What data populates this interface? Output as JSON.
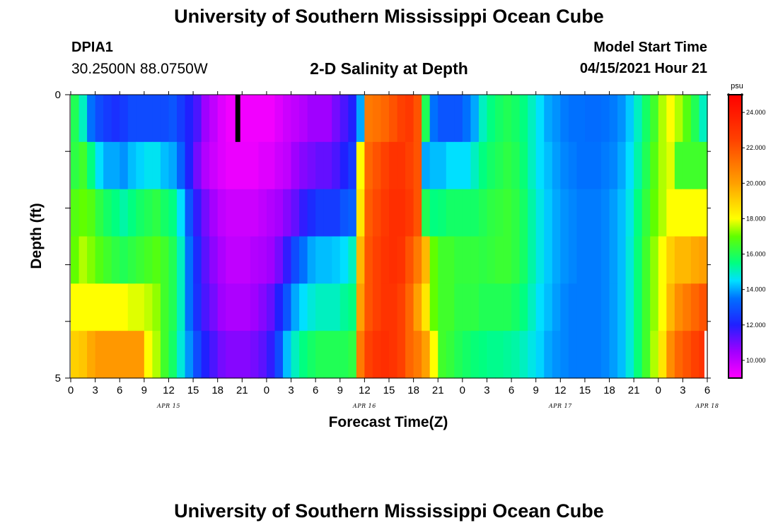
{
  "page": {
    "title": "University of Southern Mississippi Ocean Cube",
    "footer_title": "University of Southern Mississippi Ocean Cube"
  },
  "station": {
    "id": "DPIA1",
    "coords": "30.2500N  88.0750W"
  },
  "model": {
    "start_label": "Model Start Time",
    "start_value": "04/15/2021 Hour 21"
  },
  "chart_data": {
    "type": "heatmap",
    "title": "2-D Salinity at Depth",
    "xlabel": "Forecast Time(Z)",
    "ylabel": "Depth (ft)",
    "x_start": "2021-04-15 00Z",
    "x_step_hours": 1,
    "x_range_hours": [
      0,
      78
    ],
    "x_tick_labels": [
      "0",
      "3",
      "6",
      "9",
      "12",
      "15",
      "18",
      "21",
      "0",
      "3",
      "6",
      "9",
      "12",
      "15",
      "18",
      "21",
      "0",
      "3",
      "6",
      "9",
      "12",
      "15",
      "18",
      "21",
      "0",
      "3",
      "6"
    ],
    "day_labels": [
      {
        "label": "APR 15",
        "hour": 12
      },
      {
        "label": "APR 16",
        "hour": 36
      },
      {
        "label": "APR 17",
        "hour": 60
      },
      {
        "label": "APR 18",
        "hour": 78
      }
    ],
    "ylim": [
      0,
      5
    ],
    "y_tick_labels": [
      "0",
      "5"
    ],
    "depth_rows_ft": [
      0.0,
      1.0,
      2.0,
      3.0,
      4.0,
      5.0
    ],
    "colorbar": {
      "unit": "psu",
      "range": [
        9,
        25
      ],
      "tick_labels": [
        "24.000",
        "22.000",
        "20.000",
        "18.000",
        "16.000",
        "14.000",
        "12.000",
        "10.000"
      ],
      "stops": [
        {
          "v": 9.0,
          "c": "#ff00ff"
        },
        {
          "v": 10.5,
          "c": "#a000ff"
        },
        {
          "v": 12.0,
          "c": "#2020ff"
        },
        {
          "v": 13.5,
          "c": "#0070ff"
        },
        {
          "v": 14.5,
          "c": "#00e0ff"
        },
        {
          "v": 15.5,
          "c": "#00ff80"
        },
        {
          "v": 17.0,
          "c": "#60ff00"
        },
        {
          "v": 18.0,
          "c": "#ffff00"
        },
        {
          "v": 20.0,
          "c": "#ffa000"
        },
        {
          "v": 22.5,
          "c": "#ff4000"
        },
        {
          "v": 25.0,
          "c": "#ff0000"
        }
      ]
    },
    "salinity_psu": [
      [
        16.0,
        15.0,
        13.5,
        12.8,
        12.5,
        12.3,
        12.5,
        12.8,
        12.8,
        12.8,
        12.8,
        12.8,
        13.0,
        12.5,
        12.0,
        11.5,
        10.5,
        10.0,
        9.5,
        9.2,
        9.2,
        9.2,
        9.2,
        9.2,
        9.2,
        9.5,
        9.8,
        10.0,
        10.2,
        10.5,
        10.5,
        10.5,
        11.0,
        11.5,
        12.0,
        14.0,
        21.0,
        21.2,
        21.5,
        22.0,
        22.5,
        22.8,
        22.0,
        16.0,
        13.5,
        13.0,
        13.0,
        13.0,
        13.5,
        14.0,
        15.0,
        15.5,
        15.8,
        16.0,
        15.8,
        15.5,
        15.0,
        14.5,
        14.0,
        13.8,
        13.6,
        13.5,
        13.5,
        13.4,
        13.4,
        13.5,
        13.6,
        13.8,
        14.3,
        15.0,
        15.8,
        16.5,
        17.5,
        18.0,
        17.5,
        16.8,
        16.0,
        15.0,
        14.5
      ],
      [
        16.2,
        16.5,
        15.5,
        14.5,
        14.0,
        14.0,
        13.8,
        14.2,
        14.4,
        14.6,
        14.6,
        14.2,
        14.0,
        13.2,
        12.0,
        11.0,
        10.2,
        9.8,
        9.5,
        9.3,
        9.3,
        9.3,
        9.3,
        9.5,
        9.5,
        9.8,
        10.0,
        10.5,
        10.8,
        11.0,
        11.2,
        11.2,
        11.5,
        12.0,
        12.5,
        18.0,
        21.5,
        22.0,
        22.5,
        23.0,
        23.0,
        22.5,
        22.0,
        14.0,
        14.2,
        14.2,
        14.5,
        14.5,
        14.5,
        15.0,
        15.5,
        15.8,
        16.0,
        16.2,
        16.0,
        15.6,
        15.0,
        14.5,
        14.2,
        13.9,
        13.7,
        13.6,
        13.5,
        13.5,
        13.5,
        13.6,
        13.7,
        14.0,
        14.5,
        15.2,
        16.0,
        16.8,
        17.5,
        17.8,
        16.5,
        16.5,
        16.5,
        16.5,
        16.5
      ],
      [
        16.8,
        17.0,
        16.8,
        16.2,
        15.8,
        15.5,
        15.2,
        15.5,
        15.8,
        16.0,
        16.2,
        15.8,
        15.5,
        14.5,
        13.0,
        11.8,
        11.0,
        10.4,
        10.0,
        9.8,
        9.8,
        9.8,
        9.8,
        10.0,
        10.2,
        10.4,
        10.8,
        11.2,
        11.8,
        12.2,
        12.5,
        12.5,
        12.5,
        13.0,
        13.2,
        18.5,
        21.8,
        22.3,
        22.8,
        23.2,
        23.2,
        22.8,
        22.0,
        16.0,
        15.5,
        15.6,
        15.8,
        15.8,
        15.8,
        15.8,
        16.0,
        16.2,
        16.3,
        16.4,
        16.2,
        15.8,
        15.2,
        14.7,
        14.3,
        14.0,
        13.8,
        13.7,
        13.6,
        13.6,
        13.6,
        13.7,
        13.9,
        14.2,
        14.7,
        15.5,
        16.3,
        17.0,
        17.5,
        18.0,
        18.0,
        18.0,
        18.0,
        18.0,
        18.0
      ],
      [
        17.0,
        17.5,
        17.2,
        16.8,
        16.5,
        16.2,
        16.0,
        16.2,
        16.4,
        16.6,
        16.8,
        16.5,
        16.0,
        15.0,
        13.5,
        12.2,
        11.3,
        10.7,
        10.3,
        10.0,
        10.0,
        10.0,
        10.2,
        10.3,
        10.5,
        11.0,
        11.8,
        12.8,
        13.5,
        14.0,
        14.2,
        14.2,
        14.3,
        14.5,
        15.0,
        19.5,
        22.0,
        22.5,
        23.0,
        23.2,
        23.0,
        22.0,
        21.0,
        19.5,
        17.0,
        16.5,
        16.5,
        16.3,
        16.3,
        16.3,
        16.2,
        16.3,
        16.4,
        16.4,
        16.2,
        15.8,
        15.2,
        14.7,
        14.3,
        14.0,
        13.8,
        13.7,
        13.6,
        13.6,
        13.6,
        13.7,
        13.9,
        14.2,
        14.8,
        15.6,
        16.5,
        17.3,
        18.0,
        19.0,
        19.5,
        19.5,
        19.8,
        20.0,
        20.0
      ],
      [
        18.0,
        18.0,
        18.0,
        18.0,
        18.0,
        18.0,
        18.0,
        17.8,
        17.8,
        17.6,
        17.3,
        16.5,
        16.0,
        15.0,
        13.5,
        12.3,
        11.5,
        11.0,
        10.5,
        10.3,
        10.3,
        10.3,
        10.5,
        10.8,
        11.2,
        12.0,
        13.0,
        14.0,
        14.5,
        14.8,
        15.0,
        15.0,
        15.0,
        15.3,
        15.5,
        20.0,
        22.0,
        22.5,
        23.0,
        23.0,
        22.5,
        21.5,
        20.0,
        18.5,
        17.0,
        16.5,
        16.5,
        16.2,
        16.2,
        16.2,
        16.0,
        16.0,
        16.0,
        16.0,
        15.8,
        15.5,
        15.0,
        14.5,
        14.2,
        13.9,
        13.7,
        13.6,
        13.6,
        13.6,
        13.6,
        13.7,
        13.9,
        14.2,
        14.8,
        15.6,
        16.5,
        17.3,
        18.0,
        19.5,
        20.5,
        21.0,
        21.5,
        22.0,
        22.0
      ],
      [
        19.0,
        19.2,
        19.8,
        20.2,
        20.2,
        20.2,
        20.2,
        20.2,
        20.2,
        18.0,
        17.5,
        16.5,
        15.8,
        14.8,
        13.8,
        12.8,
        12.0,
        11.5,
        11.0,
        10.8,
        10.8,
        10.8,
        11.0,
        11.3,
        11.8,
        12.8,
        14.2,
        15.0,
        15.5,
        15.8,
        16.0,
        16.0,
        16.0,
        16.0,
        16.2,
        21.0,
        22.5,
        23.0,
        23.2,
        23.0,
        22.5,
        21.5,
        21.0,
        20.0,
        18.0,
        16.5,
        16.3,
        16.0,
        15.8,
        15.6,
        15.5,
        15.4,
        15.4,
        15.3,
        15.2,
        15.0,
        14.7,
        14.4,
        14.0,
        13.8,
        13.7,
        13.6,
        13.6,
        13.6,
        13.6,
        13.7,
        13.9,
        14.2,
        14.8,
        15.6,
        16.5,
        17.5,
        18.5,
        20.5,
        21.5,
        22.0,
        22.5,
        23.0,
        23.0
      ]
    ],
    "missing_cells": [
      {
        "hour": 20,
        "depth_row": 0
      },
      {
        "hour": 78,
        "depth_row": 5
      }
    ]
  }
}
